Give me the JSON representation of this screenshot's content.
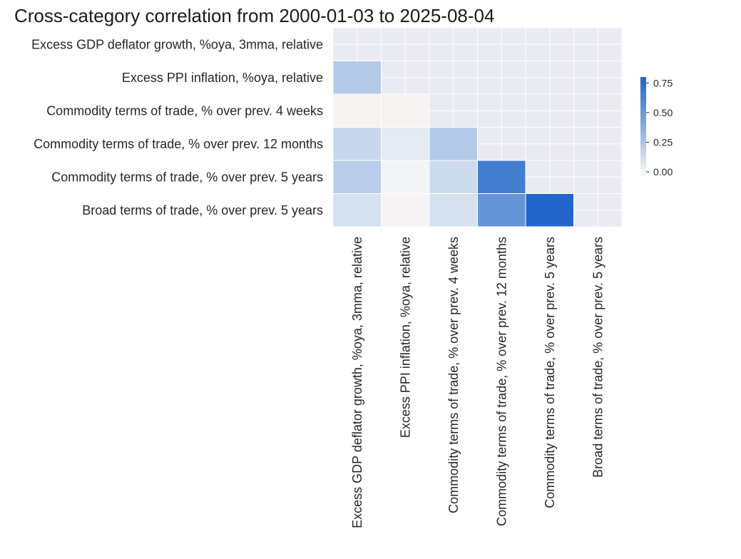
{
  "chart_data": {
    "type": "heatmap",
    "title": "Cross-category correlation from 2000-01-03 to 2025-08-04",
    "xlabel": "",
    "ylabel": "",
    "categories": [
      "Excess GDP deflator growth, %oya, 3mma, relative",
      "Excess PPI inflation, %oya, relative",
      "Commodity terms of trade, % over prev. 4 weeks",
      "Commodity terms of trade, % over prev. 12 months",
      "Commodity terms of trade, % over prev. 5 years",
      "Broad terms of trade, % over prev. 5 years"
    ],
    "mask": "upper-triangle",
    "cells": [
      {
        "row": 1,
        "col": 0,
        "value": 0.22
      },
      {
        "row": 2,
        "col": 0,
        "value": -0.03
      },
      {
        "row": 2,
        "col": 1,
        "value": -0.03
      },
      {
        "row": 3,
        "col": 0,
        "value": 0.15
      },
      {
        "row": 3,
        "col": 1,
        "value": 0.05
      },
      {
        "row": 3,
        "col": 2,
        "value": 0.22
      },
      {
        "row": 4,
        "col": 0,
        "value": 0.2
      },
      {
        "row": 4,
        "col": 1,
        "value": 0.01
      },
      {
        "row": 4,
        "col": 2,
        "value": 0.13
      },
      {
        "row": 4,
        "col": 3,
        "value": 0.66
      },
      {
        "row": 5,
        "col": 0,
        "value": 0.1
      },
      {
        "row": 5,
        "col": 1,
        "value": -0.02
      },
      {
        "row": 5,
        "col": 2,
        "value": 0.1
      },
      {
        "row": 5,
        "col": 3,
        "value": 0.52
      },
      {
        "row": 5,
        "col": 4,
        "value": 0.8
      }
    ],
    "colorbar": {
      "ticks": [
        "0.00",
        "0.25",
        "0.50",
        "0.75"
      ],
      "range": [
        -0.03,
        0.8
      ]
    },
    "colors": {
      "negative": "#e8a39a",
      "zero": "#f7f7f7",
      "positive": "#2166c8",
      "masked": "#eaeaf2",
      "grid": "#ffffff"
    }
  }
}
